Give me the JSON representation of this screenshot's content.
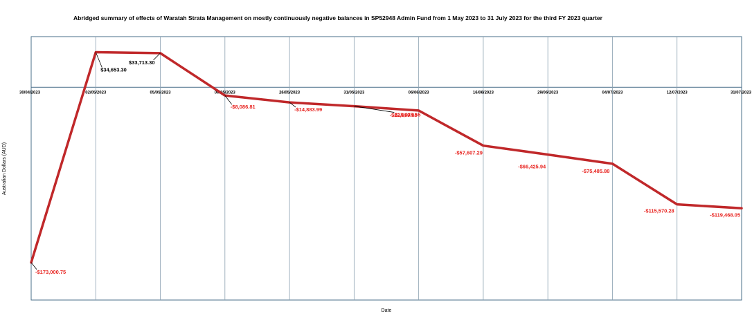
{
  "chart_data": {
    "type": "line",
    "title": "Abridged summary of effects of Waratah Strata Management on mostly continuously negative balances in SP52948 Admin Fund from 1 May 2023 to 31 July 2023 for the third FY 2023 quarter",
    "xlabel": "Date",
    "ylabel": "Australian Dollars (AUD)",
    "ylim": [
      -210000,
      50000
    ],
    "grid": true,
    "line_color": "#c0282a",
    "positive_label_color": "#000000",
    "negative_label_color": "#e8231f",
    "x_ticks": [
      "30/04/2023",
      "02/05/2023",
      "05/05/2023",
      "09/05/2023",
      "26/05/2023",
      "31/05/2023",
      "06/06/2023",
      "16/06/2023",
      "29/06/2023",
      "04/07/2023",
      "12/07/2023",
      "31/07/2023"
    ],
    "series": [
      {
        "points": [
          {
            "x": "30/04/2023",
            "y": -173000.75,
            "label": "-$173,000.75"
          },
          {
            "x": "02/05/2023",
            "y": 34653.3,
            "label": "$34,653.30"
          },
          {
            "x": "05/05/2023",
            "y": 33713.3,
            "label": "$33,713.30"
          },
          {
            "x": "09/05/2023",
            "y": -8086.81,
            "label": "-$8,086.81"
          },
          {
            "x": "26/05/2023",
            "y": -14883.99,
            "label": "-$14,883.99"
          },
          {
            "x": "31/05/2023",
            "y": -18635.55,
            "label": "-$18,635.55"
          },
          {
            "x": "06/06/2023",
            "y": -22959.85,
            "label": "-$22,959.85"
          },
          {
            "x": "16/06/2023",
            "y": -57607.29,
            "label": "-$57,607.29"
          },
          {
            "x": "29/06/2023",
            "y": -66425.94,
            "label": "-$66,425.94"
          },
          {
            "x": "04/07/2023",
            "y": -75485.88,
            "label": "-$75,485.88"
          },
          {
            "x": "12/07/2023",
            "y": -115570.28,
            "label": "-$115,570.28"
          },
          {
            "x": "31/07/2023",
            "y": -119468.05,
            "label": "-$119,468.05"
          }
        ]
      }
    ]
  }
}
